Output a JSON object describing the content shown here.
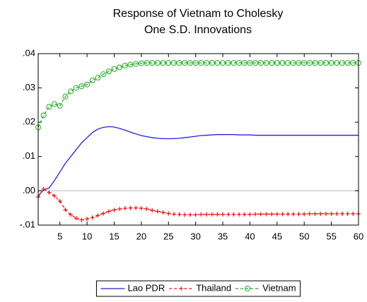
{
  "chart_data": {
    "type": "line",
    "title": "Response of Vietnam to Cholesky",
    "subtitle": "One S.D. Innovations",
    "x": [
      1,
      2,
      3,
      4,
      5,
      6,
      7,
      8,
      9,
      10,
      11,
      12,
      13,
      14,
      15,
      16,
      17,
      18,
      19,
      20,
      21,
      22,
      23,
      24,
      25,
      26,
      27,
      28,
      29,
      30,
      31,
      32,
      33,
      34,
      35,
      36,
      37,
      38,
      39,
      40,
      41,
      42,
      43,
      44,
      45,
      46,
      47,
      48,
      49,
      50,
      51,
      52,
      53,
      54,
      55,
      56,
      57,
      58,
      59,
      60
    ],
    "series": [
      {
        "name": "Lao PDR",
        "color": "#2222dd",
        "dashed": false,
        "marker": "none",
        "values": [
          -0.0015,
          0.0003,
          0.0008,
          0.003,
          0.0055,
          0.008,
          0.01,
          0.012,
          0.014,
          0.0155,
          0.017,
          0.018,
          0.0185,
          0.0187,
          0.0186,
          0.0182,
          0.0177,
          0.0171,
          0.0166,
          0.0161,
          0.0158,
          0.0155,
          0.0153,
          0.0152,
          0.0152,
          0.0152,
          0.0153,
          0.0155,
          0.0157,
          0.0159,
          0.0161,
          0.0162,
          0.0163,
          0.0164,
          0.0164,
          0.0164,
          0.0164,
          0.0163,
          0.0163,
          0.0163,
          0.0162,
          0.0162,
          0.0162,
          0.0162,
          0.0162,
          0.0162,
          0.0162,
          0.0162,
          0.0162,
          0.0162,
          0.0162,
          0.0162,
          0.0162,
          0.0162,
          0.0162,
          0.0162,
          0.0162,
          0.0162,
          0.0162,
          0.0162
        ]
      },
      {
        "name": "Thailand",
        "color": "#ee1111",
        "dashed": true,
        "marker": "plus",
        "values": [
          -0.0018,
          0.0005,
          -0.0005,
          -0.0015,
          -0.003,
          -0.0055,
          -0.007,
          -0.008,
          -0.0085,
          -0.0082,
          -0.0078,
          -0.0072,
          -0.0066,
          -0.006,
          -0.0056,
          -0.0053,
          -0.0051,
          -0.005,
          -0.005,
          -0.0051,
          -0.0053,
          -0.0057,
          -0.006,
          -0.0063,
          -0.0066,
          -0.0068,
          -0.0069,
          -0.007,
          -0.007,
          -0.007,
          -0.0069,
          -0.0069,
          -0.0069,
          -0.0069,
          -0.0069,
          -0.0069,
          -0.0069,
          -0.0069,
          -0.0069,
          -0.0069,
          -0.0068,
          -0.0068,
          -0.0068,
          -0.0068,
          -0.0068,
          -0.0068,
          -0.0068,
          -0.0068,
          -0.0068,
          -0.0068,
          -0.0067,
          -0.0067,
          -0.0067,
          -0.0067,
          -0.0067,
          -0.0067,
          -0.0067,
          -0.0067,
          -0.0067,
          -0.0067
        ]
      },
      {
        "name": "Vietnam",
        "color": "#22aa22",
        "dashed": true,
        "marker": "circle",
        "values": [
          0.0185,
          0.022,
          0.0245,
          0.0253,
          0.0248,
          0.0275,
          0.029,
          0.03,
          0.0305,
          0.031,
          0.0322,
          0.033,
          0.034,
          0.0348,
          0.0355,
          0.036,
          0.0365,
          0.0368,
          0.037,
          0.0372,
          0.0373,
          0.0373,
          0.0373,
          0.0373,
          0.0373,
          0.0373,
          0.0373,
          0.0373,
          0.0373,
          0.0373,
          0.0373,
          0.0373,
          0.0373,
          0.0373,
          0.0373,
          0.0373,
          0.0373,
          0.0373,
          0.0373,
          0.0373,
          0.0373,
          0.0373,
          0.0373,
          0.0373,
          0.0373,
          0.0373,
          0.0373,
          0.0373,
          0.0373,
          0.0373,
          0.0373,
          0.0373,
          0.0373,
          0.0373,
          0.0373,
          0.0373,
          0.0373,
          0.0373,
          0.0373,
          0.0373
        ]
      }
    ],
    "xlim": [
      1,
      60
    ],
    "xticks": [
      5,
      10,
      15,
      20,
      25,
      30,
      35,
      40,
      45,
      50,
      55,
      60
    ],
    "ylim": [
      -0.01,
      0.04
    ],
    "yticks": [
      {
        "value": -0.01,
        "label": "-.01"
      },
      {
        "value": 0,
        "label": ".00"
      },
      {
        "value": 0.01,
        "label": ".01"
      },
      {
        "value": 0.02,
        "label": ".02"
      },
      {
        "value": 0.03,
        "label": ".03"
      },
      {
        "value": 0.04,
        "label": ".04"
      }
    ],
    "zero_line": true,
    "legend": "bottom"
  }
}
